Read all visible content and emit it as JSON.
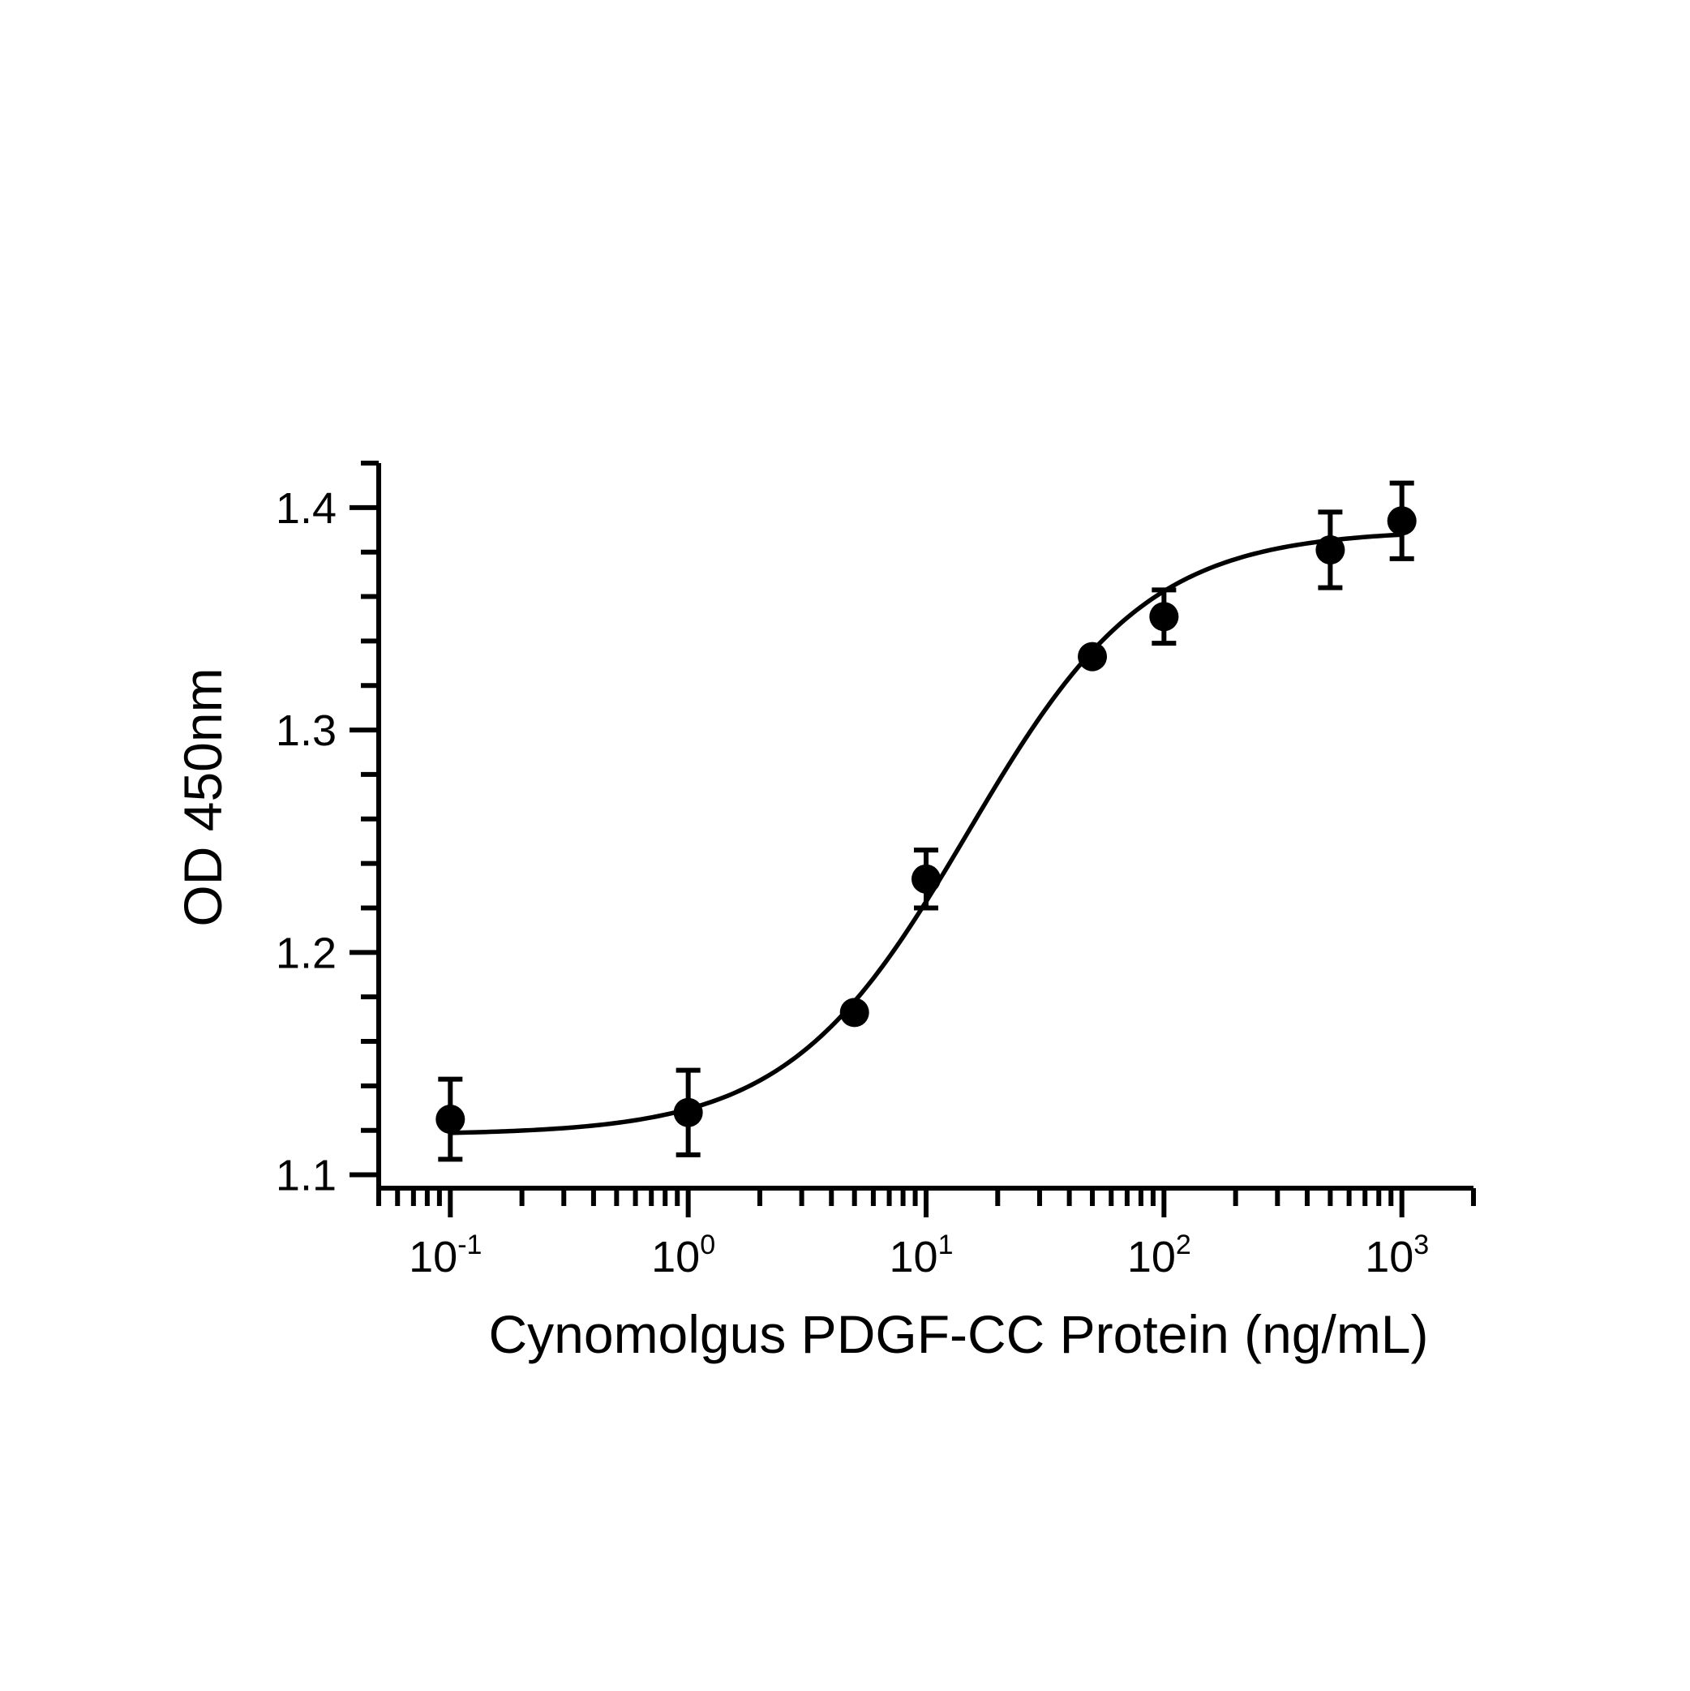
{
  "chart_data": {
    "type": "scatter",
    "title": "",
    "xlabel": "Cynomolgus PDGF-CC Protein (ng/mL)",
    "ylabel": "OD 450nm",
    "x_scale": "log",
    "xlim": [
      0.05,
      2000
    ],
    "ylim": [
      1.094,
      1.42
    ],
    "x_ticks": [
      {
        "base": "10",
        "exp": "-1"
      },
      {
        "base": "10",
        "exp": "0"
      },
      {
        "base": "10",
        "exp": "1"
      },
      {
        "base": "10",
        "exp": "2"
      },
      {
        "base": "10",
        "exp": "3"
      }
    ],
    "y_ticks": [
      "1.1",
      "1.2",
      "1.3",
      "1.4"
    ],
    "grid": false,
    "series": [
      {
        "points": [
          {
            "x": 0.1,
            "y": 1.125,
            "err": 0.018
          },
          {
            "x": 1,
            "y": 1.128,
            "err": 0.019
          },
          {
            "x": 5,
            "y": 1.173,
            "err": 0
          },
          {
            "x": 10,
            "y": 1.233,
            "err": 0.013
          },
          {
            "x": 50,
            "y": 1.333,
            "err": 0
          },
          {
            "x": 100,
            "y": 1.351,
            "err": 0.012
          },
          {
            "x": 500,
            "y": 1.381,
            "err": 0.017
          },
          {
            "x": 1000,
            "y": 1.394,
            "err": 0.017
          }
        ],
        "fit": {
          "model": "4PL",
          "bottom": 1.118,
          "top": 1.39,
          "ec50": 15,
          "hill": 1.15
        }
      }
    ],
    "colors": {
      "marks": "#000000"
    }
  }
}
